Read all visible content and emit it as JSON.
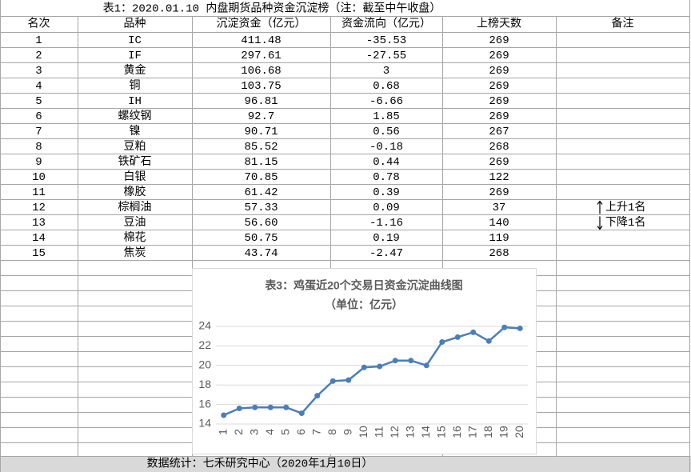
{
  "table": {
    "title": "表1：2020.01.10 内盘期货品种资金沉淀榜（注：截至中午收盘）",
    "header": [
      "名次",
      "品种",
      "沉淀资金（亿元）",
      "资金流向（亿元）",
      "上榜天数",
      "备注"
    ],
    "rows": [
      [
        "1",
        "IC",
        "411.48",
        "-35.53",
        "269"
      ],
      [
        "2",
        "IF",
        "297.61",
        "-27.55",
        "269"
      ],
      [
        "3",
        "黄金",
        "106.68",
        "3",
        "269"
      ],
      [
        "4",
        "铜",
        "103.75",
        "0.68",
        "269"
      ],
      [
        "5",
        "IH",
        "96.81",
        "-6.66",
        "269"
      ],
      [
        "6",
        "螺纹钢",
        "92.7",
        "1.85",
        "269"
      ],
      [
        "7",
        "镍",
        "90.71",
        "0.56",
        "267"
      ],
      [
        "8",
        "豆粕",
        "85.52",
        "-0.18",
        "268"
      ],
      [
        "9",
        "铁矿石",
        "81.15",
        "0.44",
        "269"
      ],
      [
        "10",
        "白银",
        "70.85",
        "0.78",
        "122"
      ],
      [
        "11",
        "橡胶",
        "61.42",
        "0.39",
        "269"
      ],
      [
        "12",
        "棕榈油",
        "57.33",
        "0.09",
        "37",
        "上升1名"
      ],
      [
        "13",
        "豆油",
        "56.60",
        "-1.16",
        "140",
        "下降1名"
      ],
      [
        "14",
        "棉花",
        "50.75",
        "0.19",
        "119"
      ],
      [
        "15",
        "焦炭",
        "43.74",
        "-2.47",
        "268"
      ]
    ]
  },
  "chart_data": {
    "type": "line",
    "title": "表3：鸡蛋近20个交易日资金沉淀曲线图",
    "subtitle": "（单位：亿元）",
    "categories": [
      "1",
      "2",
      "3",
      "4",
      "5",
      "6",
      "7",
      "8",
      "9",
      "10",
      "11",
      "12",
      "13",
      "14",
      "15",
      "16",
      "17",
      "18",
      "19",
      "20"
    ],
    "series": [
      {
        "name": "鸡蛋",
        "color": "#4a7ebb",
        "values": [
          14.9,
          15.6,
          15.7,
          15.7,
          15.7,
          15.1,
          16.9,
          18.4,
          18.5,
          19.8,
          19.9,
          20.5,
          20.5,
          20.0,
          22.4,
          22.9,
          23.4,
          22.5,
          23.9,
          23.8
        ]
      }
    ],
    "ylim": [
      14,
      24
    ],
    "yticks": [
      14,
      16,
      18,
      20,
      22,
      24
    ],
    "grid": true
  },
  "footer": "数据统计：七禾研究中心（2020年1月10日）"
}
